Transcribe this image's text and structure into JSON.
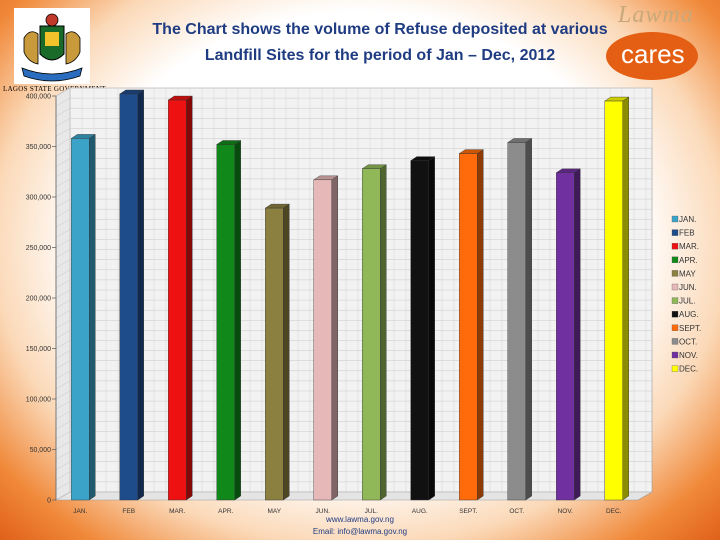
{
  "slide": {
    "title_line1": "The Chart shows the volume of Refuse deposited at various",
    "title_line2": "Landfill Sites for the period of Jan – Dec, 2012",
    "crest_caption": "LAGOS STATE GOVERNMENT",
    "logo_top": "Lawma",
    "logo_text": "cares",
    "footer_web": "www.lawma.gov.ng",
    "footer_email": "Email: info@lawma.gov.ng",
    "brand_color": "#e45f14",
    "title_color": "#1f3c82"
  },
  "chart_data": {
    "type": "bar",
    "title": "",
    "xlabel": "",
    "ylabel": "",
    "ylim": [
      0,
      400000
    ],
    "y_ticks": [
      0,
      50000,
      100000,
      150000,
      200000,
      250000,
      300000,
      350000,
      400000
    ],
    "y_tick_labels": [
      "0",
      "50,000",
      "100,000",
      "150,000",
      "200,000",
      "250,000",
      "300,000",
      "350,000",
      "400,000"
    ],
    "grid": true,
    "legend_position": "right",
    "categories": [
      "JAN.",
      "FEB",
      "MAR.",
      "APR.",
      "MAY",
      "JUN.",
      "JUL.",
      "AUG.",
      "SEPT.",
      "OCT.",
      "NOV.",
      "DEC."
    ],
    "values": [
      358000,
      402000,
      396000,
      352000,
      289000,
      317000,
      328000,
      336000,
      343000,
      354000,
      324000,
      395000
    ],
    "colors": [
      "#3ba3c8",
      "#1e4b8a",
      "#ee1111",
      "#11881a",
      "#8c8040",
      "#e6b8b8",
      "#90b858",
      "#111111",
      "#ff6a0a",
      "#8c8c8c",
      "#7030a0",
      "#ffff00"
    ]
  }
}
